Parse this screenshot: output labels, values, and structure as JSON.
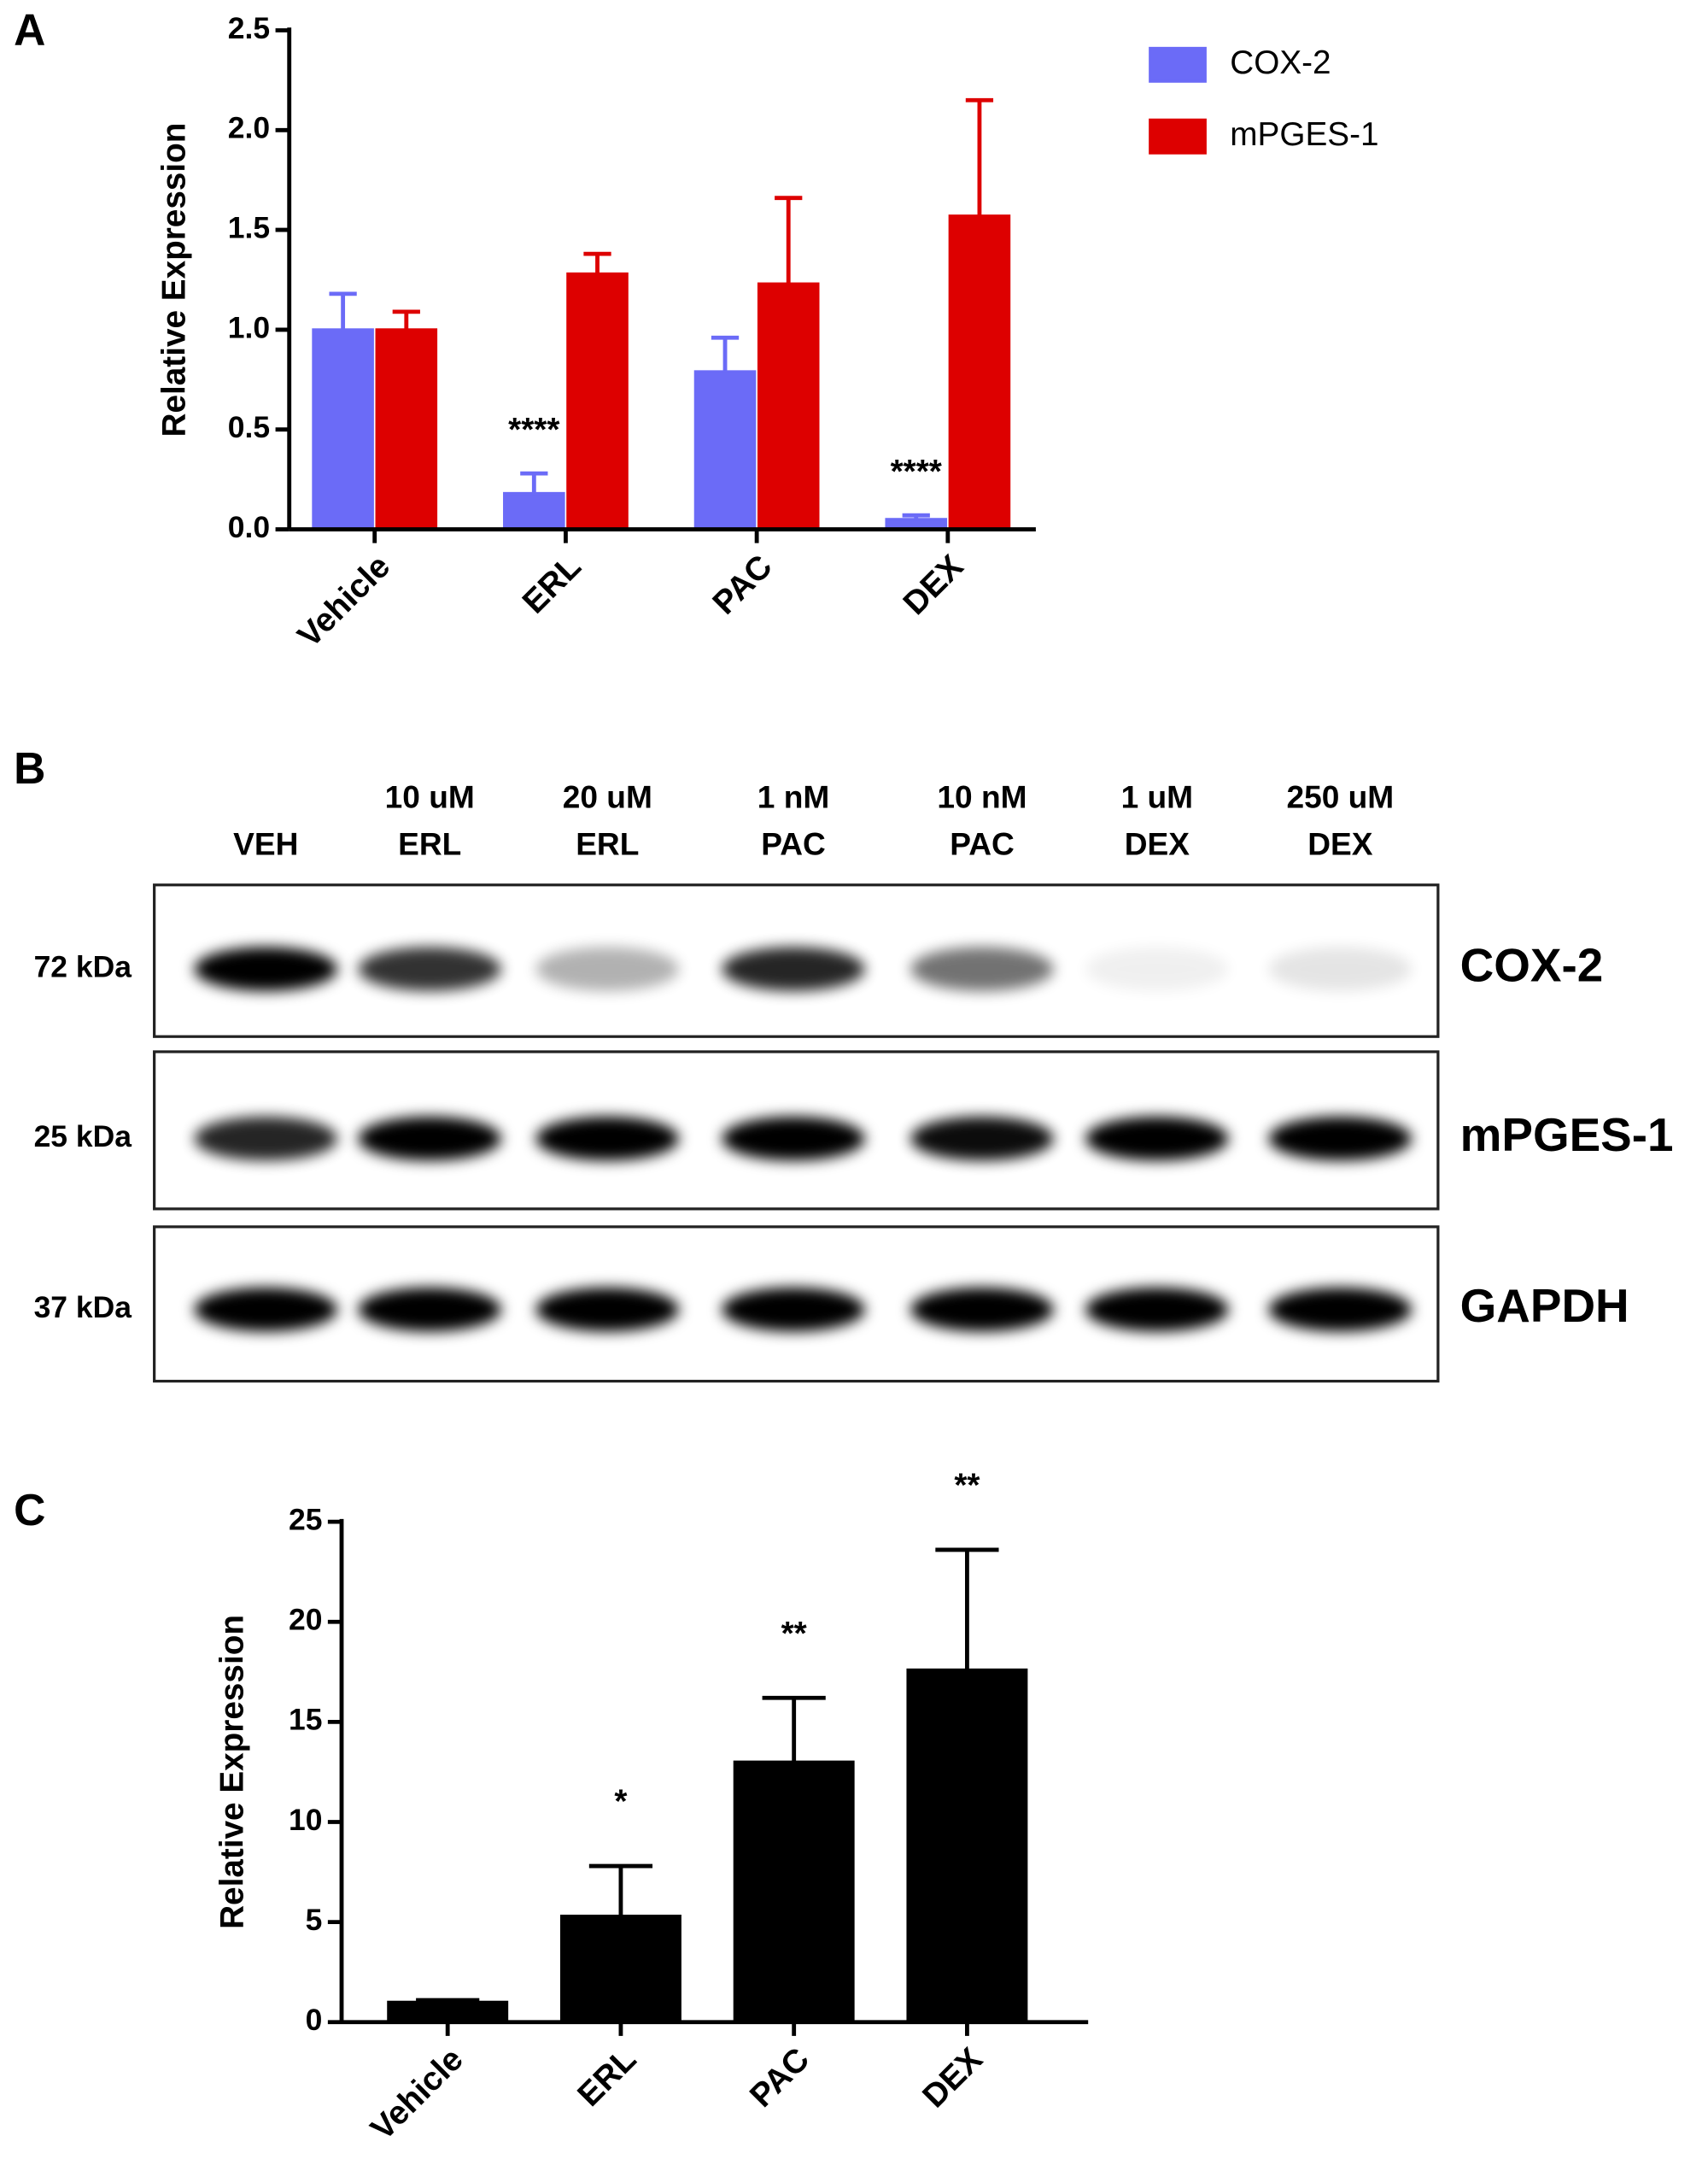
{
  "chart_data": [
    {
      "type": "bar",
      "panel_label": "A",
      "y_label": "Relative Expression",
      "categories": [
        "Vehicle",
        "ERL",
        "PAC",
        "DEX"
      ],
      "series": [
        {
          "name": "COX-2",
          "color": "#6b6bf7",
          "values": [
            1.0,
            0.18,
            0.79,
            0.05
          ],
          "errors": [
            0.18,
            0.1,
            0.17,
            0.02
          ],
          "labels": [
            null,
            "****",
            null,
            "****"
          ]
        },
        {
          "name": "mPGES-1",
          "color": "#dd0000",
          "values": [
            1.0,
            1.28,
            1.23,
            1.57
          ],
          "errors": [
            0.09,
            0.1,
            0.43,
            0.58
          ]
        }
      ],
      "ylim": [
        0,
        2.5
      ],
      "yticks": [
        {
          "value": 0,
          "label": "0.0"
        },
        0.5,
        {
          "value": 1,
          "label": "1.0"
        },
        1.5,
        {
          "value": 2,
          "label": "2.0"
        },
        2.5
      ],
      "legend": "top-right"
    },
    {
      "type": "bar",
      "panel_label": "C",
      "y_label": "Relative Expression",
      "categories": [
        "Vehicle",
        "ERL",
        "PAC",
        "DEX"
      ],
      "values": [
        1.0,
        5.3,
        13.0,
        17.6
      ],
      "errors": [
        0.1,
        2.5,
        3.2,
        6.0
      ],
      "labels": [
        null,
        "*",
        "**",
        "**"
      ],
      "color": "#000000",
      "ylim": [
        0,
        25
      ],
      "yticks": [
        0,
        5,
        10,
        15,
        20,
        25
      ]
    }
  ],
  "blot": {
    "panel_label": "B",
    "lanes": [
      [
        "VEH"
      ],
      [
        "10 uM",
        "ERL"
      ],
      [
        "20 uM",
        "ERL"
      ],
      [
        "1 nM",
        "PAC"
      ],
      [
        "10 nM",
        "PAC"
      ],
      [
        "1 uM",
        "DEX"
      ],
      [
        "250 uM",
        "DEX"
      ]
    ],
    "rows": [
      {
        "marker": "72 kDa",
        "protein": "COX-2"
      },
      {
        "marker": "25 kDa",
        "protein": "mPGES-1"
      },
      {
        "marker": "37 kDa",
        "protein": "GAPDH"
      }
    ]
  }
}
